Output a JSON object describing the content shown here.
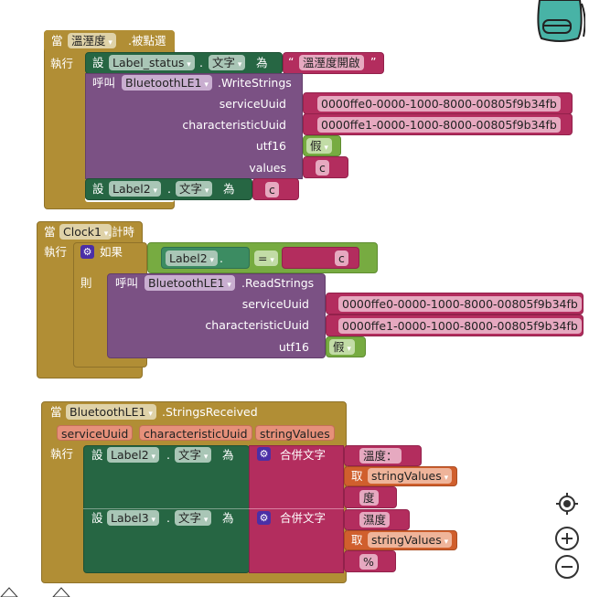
{
  "block1": {
    "when": "當",
    "component": "溫溼度",
    "event": ".被點選",
    "do": "執行",
    "set1": {
      "set": "設",
      "component": "Label_status",
      "dot": ".",
      "prop": "文字",
      "to": "為",
      "value": "溫溼度開啟"
    },
    "call": {
      "call": "呼叫",
      "component": "BluetoothLE1",
      "method": ".WriteStrings",
      "args": [
        {
          "name": "serviceUuid",
          "value": "0000ffe0-0000-1000-8000-00805f9b34fb"
        },
        {
          "name": "characteristicUuid",
          "value": "0000ffe1-0000-1000-8000-00805f9b34fb"
        },
        {
          "name": "utf16",
          "value": "假"
        },
        {
          "name": "values",
          "value": "c"
        }
      ]
    },
    "set2": {
      "set": "設",
      "component": "Label2",
      "dot": ".",
      "prop": "文字",
      "to": "為",
      "value": "c"
    }
  },
  "block2": {
    "when": "當",
    "component": "Clock1",
    "event": ".計時",
    "do": "執行",
    "if": "如果",
    "then": "則",
    "cond": {
      "component": "Label2",
      "dot": ".",
      "prop": "文字",
      "op": "=",
      "value": "c"
    },
    "call": {
      "call": "呼叫",
      "component": "BluetoothLE1",
      "method": ".ReadStrings",
      "args": [
        {
          "name": "serviceUuid",
          "value": "0000ffe0-0000-1000-8000-00805f9b34fb"
        },
        {
          "name": "characteristicUuid",
          "value": "0000ffe1-0000-1000-8000-00805f9b34fb"
        },
        {
          "name": "utf16",
          "value": "假"
        }
      ]
    }
  },
  "block3": {
    "when": "當",
    "component": "BluetoothLE1",
    "event": ".StringsReceived",
    "params": [
      "serviceUuid",
      "characteristicUuid",
      "stringValues"
    ],
    "do": "執行",
    "set1": {
      "set": "設",
      "component": "Label2",
      "dot": ".",
      "prop": "文字",
      "to": "為",
      "join": "合併文字",
      "parts": [
        "溫度：",
        "stringValues",
        "度"
      ],
      "get": "取"
    },
    "set2": {
      "set": "設",
      "component": "Label3",
      "dot": ".",
      "prop": "文字",
      "to": "為",
      "join": "合併文字",
      "parts": [
        "濕度",
        "stringValues",
        "%"
      ],
      "get": "取"
    }
  },
  "quote_open": "“",
  "quote_close": "”",
  "icons": [
    "backpack-icon",
    "recenter-icon",
    "zoom-in-icon",
    "zoom-out-icon",
    "warning-icon"
  ]
}
